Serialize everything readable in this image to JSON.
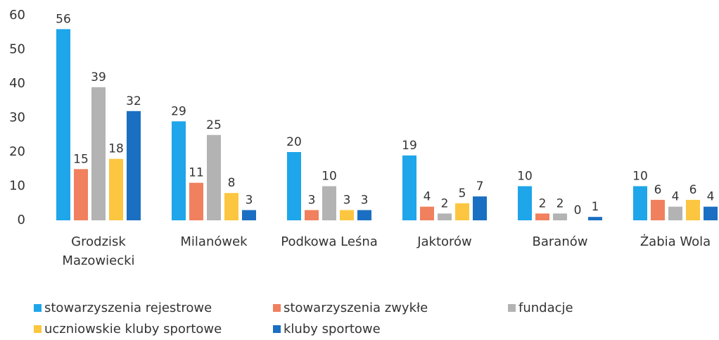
{
  "chart_data": {
    "type": "bar",
    "categories": [
      "Grodzisk Mazowiecki",
      "Milanówek",
      "Podkowa Leśna",
      "Jaktorów",
      "Baranów",
      "Żabia Wola"
    ],
    "series": [
      {
        "name": "stowarzyszenia rejestrowe",
        "color": "#1ea5ea",
        "values": [
          56,
          29,
          20,
          19,
          10,
          10
        ]
      },
      {
        "name": "stowarzyszenia zwykłe",
        "color": "#f0805e",
        "values": [
          15,
          11,
          3,
          4,
          2,
          6
        ]
      },
      {
        "name": "fundacje",
        "color": "#b3b3b3",
        "values": [
          39,
          25,
          10,
          2,
          2,
          4
        ]
      },
      {
        "name": "uczniowskie kluby sportowe",
        "color": "#fcc640",
        "values": [
          18,
          8,
          3,
          5,
          0,
          6
        ]
      },
      {
        "name": "kluby sportowe",
        "color": "#1b6fc2",
        "values": [
          32,
          3,
          3,
          7,
          1,
          4
        ]
      }
    ],
    "ylim": [
      0,
      60
    ],
    "yticks": [
      0,
      10,
      20,
      30,
      40,
      50,
      60
    ],
    "grid": false,
    "legend": "bottom"
  }
}
